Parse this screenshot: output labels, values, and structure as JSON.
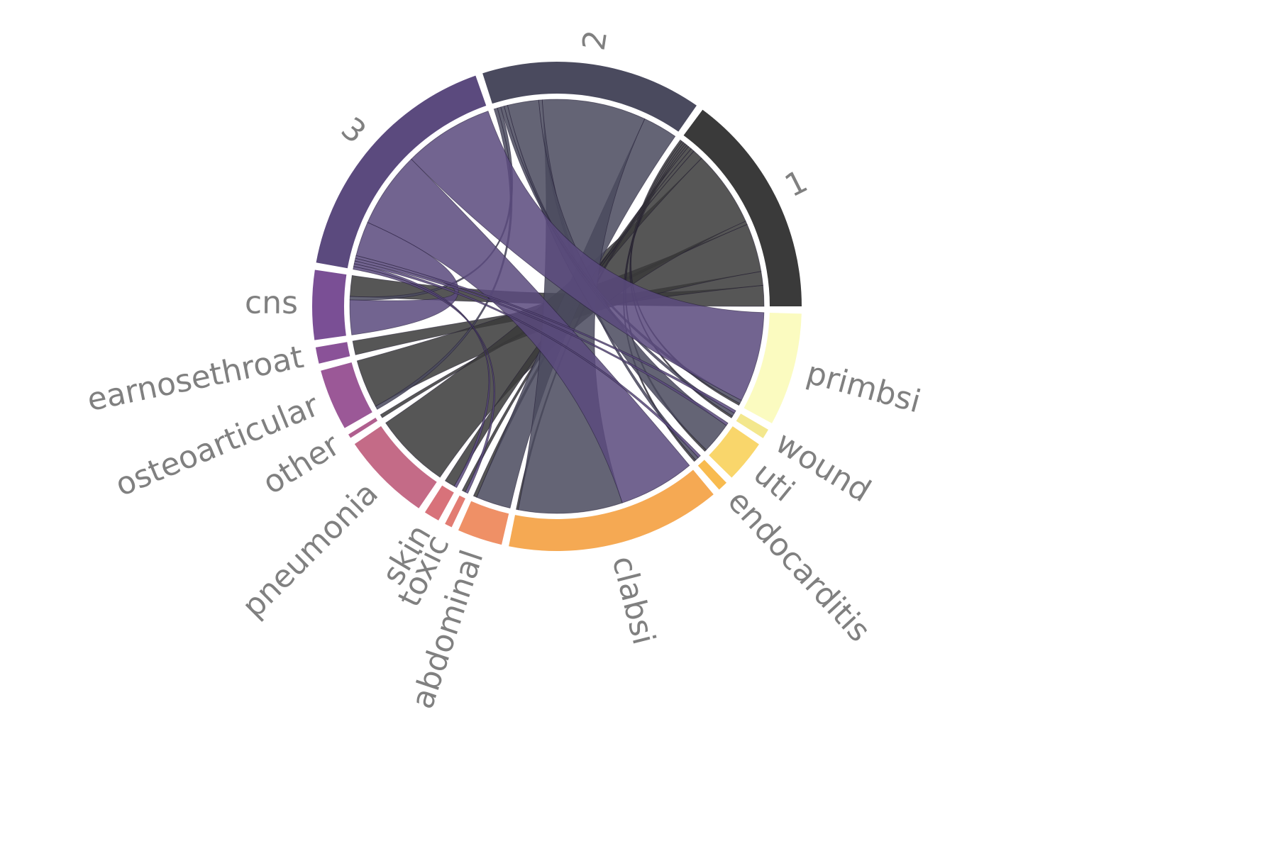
{
  "chart_data": {
    "type": "chord",
    "title": "",
    "groups": [
      {
        "id": "1",
        "label": "1",
        "kind": "source",
        "color": "#3a3a3a"
      },
      {
        "id": "2",
        "label": "2",
        "kind": "source",
        "color": "#4a4a5e"
      },
      {
        "id": "3",
        "label": "3",
        "kind": "source",
        "color": "#5b4a7e"
      },
      {
        "id": "cns",
        "label": "cns",
        "kind": "target",
        "color": "#7a4f95"
      },
      {
        "id": "earnosethroat",
        "label": "earnosethroat",
        "kind": "target",
        "color": "#8a5298"
      },
      {
        "id": "osteoarticular",
        "label": "osteoarticular",
        "kind": "target",
        "color": "#9b5897"
      },
      {
        "id": "other",
        "label": "other",
        "kind": "target",
        "color": "#b05f8f"
      },
      {
        "id": "pneumonia",
        "label": "pneumonia",
        "kind": "target",
        "color": "#c46b87"
      },
      {
        "id": "skin",
        "label": "skin",
        "kind": "target",
        "color": "#d8727a"
      },
      {
        "id": "toxic",
        "label": "toxic",
        "kind": "target",
        "color": "#e27c73"
      },
      {
        "id": "abdominal",
        "label": "abdominal",
        "kind": "target",
        "color": "#ef9066"
      },
      {
        "id": "clabsi",
        "label": "clabsi",
        "kind": "target",
        "color": "#f5a953"
      },
      {
        "id": "endocarditis",
        "label": "endocarditis",
        "kind": "target",
        "color": "#f8bb4f"
      },
      {
        "id": "uti",
        "label": "uti",
        "kind": "target",
        "color": "#f9d66b"
      },
      {
        "id": "wound",
        "label": "wound",
        "kind": "target",
        "color": "#f3e78d"
      },
      {
        "id": "primbsi",
        "label": "primbsi",
        "kind": "target",
        "color": "#fbfbc0"
      }
    ],
    "flows": [
      {
        "source": "1",
        "target": "cns",
        "value": 3
      },
      {
        "source": "1",
        "target": "earnosethroat",
        "value": 2
      },
      {
        "source": "1",
        "target": "osteoarticular",
        "value": 7
      },
      {
        "source": "1",
        "target": "other",
        "value": 0.5
      },
      {
        "source": "1",
        "target": "pneumonia",
        "value": 11
      },
      {
        "source": "1",
        "target": "skin",
        "value": 1.5
      },
      {
        "source": "1",
        "target": "toxic",
        "value": 0.5
      },
      {
        "source": "1",
        "target": "abdominal",
        "value": 0.5
      },
      {
        "source": "1",
        "target": "clabsi",
        "value": 0.3
      },
      {
        "source": "1",
        "target": "endocarditis",
        "value": 0.3
      },
      {
        "source": "1",
        "target": "uti",
        "value": 0.3
      },
      {
        "source": "1",
        "target": "wound",
        "value": 0.3
      },
      {
        "source": "1",
        "target": "primbsi",
        "value": 0.3
      },
      {
        "source": "2",
        "target": "abdominal",
        "value": 5
      },
      {
        "source": "2",
        "target": "clabsi",
        "value": 15
      },
      {
        "source": "2",
        "target": "endocarditis",
        "value": 0.5
      },
      {
        "source": "2",
        "target": "uti",
        "value": 4.5
      },
      {
        "source": "2",
        "target": "wound",
        "value": 0.5
      },
      {
        "source": "2",
        "target": "primbsi",
        "value": 0.5
      },
      {
        "source": "2",
        "target": "cns",
        "value": 0.5
      },
      {
        "source": "2",
        "target": "osteoarticular",
        "value": 0.5
      },
      {
        "source": "3",
        "target": "primbsi",
        "value": 13
      },
      {
        "source": "3",
        "target": "clabsi",
        "value": 11
      },
      {
        "source": "3",
        "target": "cns",
        "value": 5
      },
      {
        "source": "3",
        "target": "wound",
        "value": 0.4
      },
      {
        "source": "3",
        "target": "uti",
        "value": 0.4
      },
      {
        "source": "3",
        "target": "endocarditis",
        "value": 0.4
      },
      {
        "source": "3",
        "target": "skin",
        "value": 0.4
      },
      {
        "source": "3",
        "target": "toxic",
        "value": 0.4
      }
    ],
    "label_color": "#808080",
    "legend": false
  }
}
